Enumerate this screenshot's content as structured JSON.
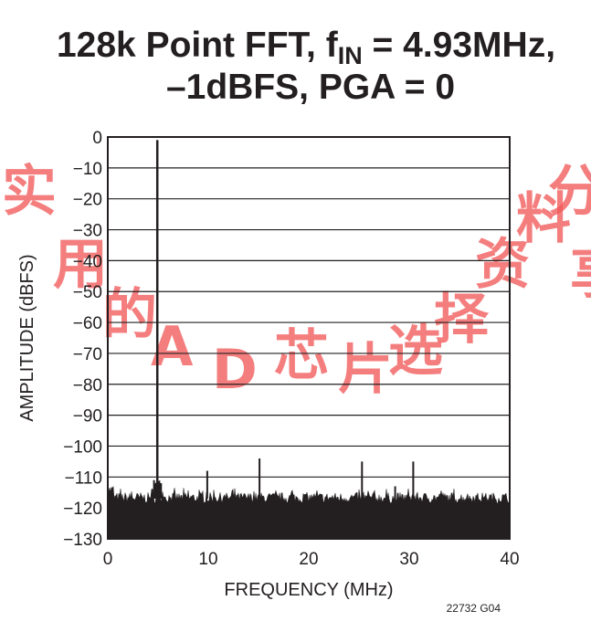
{
  "chart_data": {
    "type": "line",
    "title_line1_pre": "128k Point FFT, f",
    "title_line1_sub": "IN",
    "title_line1_post": " = 4.93MHz,",
    "title_line2": "–1dBFS, PGA = 0",
    "xlabel": "FREQUENCY (MHz)",
    "ylabel": "AMPLITUDE (dBFS)",
    "xlim": [
      0,
      40
    ],
    "ylim": [
      -130,
      0
    ],
    "x_ticks": [
      "0",
      "10",
      "20",
      "30",
      "40"
    ],
    "y_ticks": [
      "0",
      "-10",
      "-20",
      "-30",
      "-40",
      "-50",
      "-60",
      "-70",
      "-80",
      "-90",
      "-100",
      "-110",
      "-120",
      "-130"
    ],
    "grid": "horizontal",
    "noise_floor_dbfs": -117,
    "spurs": [
      {
        "x": 4.93,
        "y": -1
      },
      {
        "x": 4.6,
        "y": -111
      },
      {
        "x": 5.3,
        "y": -112
      },
      {
        "x": 9.9,
        "y": -108
      },
      {
        "x": 15.1,
        "y": -104
      },
      {
        "x": 25.3,
        "y": -105
      },
      {
        "x": 28.6,
        "y": -113
      },
      {
        "x": 30.4,
        "y": -105
      }
    ],
    "figure_id": "22732 G04"
  },
  "watermark": "实用的AD芯片选择资料分享"
}
